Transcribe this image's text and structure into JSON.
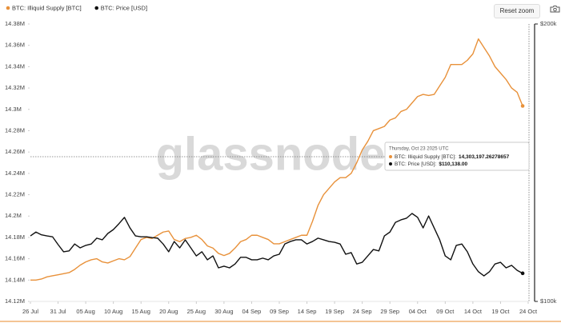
{
  "chart_data": {
    "type": "line",
    "watermark": "glassnode",
    "x": [
      "2025-07-26",
      "2025-07-27",
      "2025-07-28",
      "2025-07-29",
      "2025-07-30",
      "2025-07-31",
      "2025-08-01",
      "2025-08-02",
      "2025-08-03",
      "2025-08-04",
      "2025-08-05",
      "2025-08-06",
      "2025-08-07",
      "2025-08-08",
      "2025-08-09",
      "2025-08-10",
      "2025-08-11",
      "2025-08-12",
      "2025-08-13",
      "2025-08-14",
      "2025-08-15",
      "2025-08-16",
      "2025-08-17",
      "2025-08-18",
      "2025-08-19",
      "2025-08-20",
      "2025-08-21",
      "2025-08-22",
      "2025-08-23",
      "2025-08-24",
      "2025-08-25",
      "2025-08-26",
      "2025-08-27",
      "2025-08-28",
      "2025-08-29",
      "2025-08-30",
      "2025-08-31",
      "2025-09-01",
      "2025-09-02",
      "2025-09-03",
      "2025-09-04",
      "2025-09-05",
      "2025-09-06",
      "2025-09-07",
      "2025-09-08",
      "2025-09-09",
      "2025-09-10",
      "2025-09-11",
      "2025-09-12",
      "2025-09-13",
      "2025-09-14",
      "2025-09-15",
      "2025-09-16",
      "2025-09-17",
      "2025-09-18",
      "2025-09-19",
      "2025-09-20",
      "2025-09-21",
      "2025-09-22",
      "2025-09-23",
      "2025-09-24",
      "2025-09-25",
      "2025-09-26",
      "2025-09-27",
      "2025-09-28",
      "2025-09-29",
      "2025-09-30",
      "2025-10-01",
      "2025-10-02",
      "2025-10-03",
      "2025-10-04",
      "2025-10-05",
      "2025-10-06",
      "2025-10-07",
      "2025-10-08",
      "2025-10-09",
      "2025-10-10",
      "2025-10-11",
      "2025-10-12",
      "2025-10-13",
      "2025-10-14",
      "2025-10-15",
      "2025-10-16",
      "2025-10-17",
      "2025-10-18",
      "2025-10-19",
      "2025-10-20",
      "2025-10-21",
      "2025-10-22",
      "2025-10-23"
    ],
    "xlim": [
      "2025-07-26",
      "2025-10-24"
    ],
    "xticks": [
      {
        "value": "2025-07-26",
        "label": "26 Jul"
      },
      {
        "value": "2025-07-31",
        "label": "31 Jul"
      },
      {
        "value": "2025-08-05",
        "label": "05 Aug"
      },
      {
        "value": "2025-08-10",
        "label": "10 Aug"
      },
      {
        "value": "2025-08-15",
        "label": "15 Aug"
      },
      {
        "value": "2025-08-20",
        "label": "20 Aug"
      },
      {
        "value": "2025-08-25",
        "label": "25 Aug"
      },
      {
        "value": "2025-08-30",
        "label": "30 Aug"
      },
      {
        "value": "2025-09-04",
        "label": "04 Sep"
      },
      {
        "value": "2025-09-09",
        "label": "09 Sep"
      },
      {
        "value": "2025-09-14",
        "label": "14 Sep"
      },
      {
        "value": "2025-09-19",
        "label": "19 Sep"
      },
      {
        "value": "2025-09-24",
        "label": "24 Sep"
      },
      {
        "value": "2025-09-29",
        "label": "29 Sep"
      },
      {
        "value": "2025-10-04",
        "label": "04 Oct"
      },
      {
        "value": "2025-10-09",
        "label": "09 Oct"
      },
      {
        "value": "2025-10-14",
        "label": "14 Oct"
      },
      {
        "value": "2025-10-19",
        "label": "19 Oct"
      },
      {
        "value": "2025-10-24",
        "label": "24 Oct"
      }
    ],
    "ylim": [
      14120000,
      14380000
    ],
    "yticks": [
      {
        "value": 14120000,
        "label": "14.12M"
      },
      {
        "value": 14140000,
        "label": "14.14M"
      },
      {
        "value": 14160000,
        "label": "14.16M"
      },
      {
        "value": 14180000,
        "label": "14.18M"
      },
      {
        "value": 14200000,
        "label": "14.2M"
      },
      {
        "value": 14220000,
        "label": "14.22M"
      },
      {
        "value": 14240000,
        "label": "14.24M"
      },
      {
        "value": 14260000,
        "label": "14.26M"
      },
      {
        "value": 14280000,
        "label": "14.28M"
      },
      {
        "value": 14300000,
        "label": "14.3M"
      },
      {
        "value": 14320000,
        "label": "14.32M"
      },
      {
        "value": 14340000,
        "label": "14.34M"
      },
      {
        "value": 14360000,
        "label": "14.36M"
      },
      {
        "value": 14380000,
        "label": "14.38M"
      }
    ],
    "y2lim": [
      100000,
      200000
    ],
    "y2ticks": [
      {
        "value": 100000,
        "label": "$100k"
      },
      {
        "value": 200000,
        "label": "$200k"
      }
    ],
    "grid": false,
    "series": [
      {
        "name": "BTC: Illiquid Supply [BTC]",
        "color": "#e8913a",
        "values": [
          14140000,
          14140000,
          14141000,
          14143000,
          14144000,
          14145000,
          14146000,
          14147000,
          14150000,
          14154000,
          14157000,
          14159000,
          14160000,
          14157000,
          14156000,
          14158000,
          14160000,
          14159000,
          14162000,
          14170000,
          14178000,
          14180000,
          14179000,
          14182000,
          14185000,
          14186000,
          14178000,
          14176000,
          14179000,
          14180000,
          14182000,
          14178000,
          14172000,
          14170000,
          14165000,
          14163000,
          14165000,
          14170000,
          14176000,
          14178000,
          14182000,
          14182000,
          14180000,
          14178000,
          14174000,
          14174000,
          14176000,
          14178000,
          14180000,
          14182000,
          14182000,
          14195000,
          14210000,
          14220000,
          14226000,
          14232000,
          14236000,
          14236000,
          14240000,
          14250000,
          14262000,
          14270000,
          14280000,
          14282000,
          14284000,
          14290000,
          14292000,
          14298000,
          14300000,
          14306000,
          14312000,
          14314000,
          14313000,
          14314000,
          14322000,
          14330000,
          14342000,
          14342000,
          14342000,
          14346000,
          14352000,
          14366000,
          14358000,
          14350000,
          14340000,
          14334000,
          14328000,
          14320000,
          14316000,
          14303197.26278657
        ]
      },
      {
        "name": "BTC: Price [USD]",
        "color": "#111111",
        "axis": "y2",
        "values": [
          123600,
          125000,
          124000,
          123600,
          123300,
          120500,
          117900,
          118200,
          120700,
          119300,
          120200,
          120700,
          122800,
          122200,
          124500,
          125900,
          128000,
          130300,
          126500,
          123600,
          123300,
          123300,
          123000,
          122800,
          120700,
          117900,
          121600,
          119300,
          122200,
          119300,
          116400,
          117900,
          115000,
          116400,
          112100,
          112700,
          112100,
          113500,
          115900,
          115900,
          115000,
          115000,
          115600,
          115000,
          116400,
          117000,
          120700,
          121600,
          122200,
          122200,
          120700,
          121600,
          122800,
          122200,
          121600,
          121300,
          120700,
          117000,
          117600,
          113500,
          114100,
          116400,
          118700,
          118200,
          123600,
          125000,
          128500,
          129400,
          130000,
          131700,
          130300,
          126500,
          130800,
          126500,
          122200,
          116400,
          115000,
          120200,
          120700,
          117900,
          113500,
          110700,
          109200,
          110700,
          113500,
          114100,
          112100,
          113000,
          111200,
          110138
        ]
      }
    ],
    "tooltip": {
      "title": "Thursday, Oct 23 2025 UTC",
      "rows": [
        {
          "label": "BTC: Illiquid Supply [BTC]:",
          "value_label": "14,303,197.26278657"
        },
        {
          "label": "BTC: Price [USD]:",
          "value_label": "$110,138.00"
        }
      ]
    }
  },
  "toolbar": {
    "reset_zoom": "Reset zoom"
  }
}
